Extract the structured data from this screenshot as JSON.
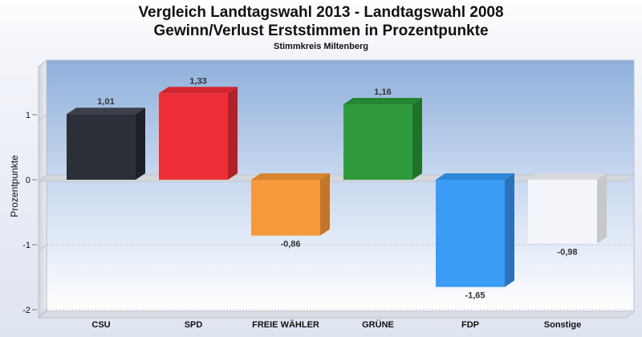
{
  "chart_data": {
    "type": "bar",
    "title": "Vergleich Landtagswahl 2013 - Landtagswahl 2008",
    "subtitle": "Gewinn/Verlust Erststimmen in Prozentpunkte",
    "caption": "Stimmkreis Miltenberg",
    "ylabel": "Prozentpunkte",
    "xlabel": "",
    "ylim": [
      -2.1,
      1.8
    ],
    "yticks": [
      1,
      0,
      -1,
      -2
    ],
    "ytick_labels": [
      "1",
      "0",
      "-1",
      "-2"
    ],
    "categories": [
      "CSU",
      "SPD",
      "FREIE WÄHLER",
      "GRÜNE",
      "FDP",
      "Sonstige"
    ],
    "values": [
      1.01,
      1.33,
      -0.86,
      1.16,
      -1.65,
      -0.98
    ],
    "value_labels": [
      "1,01",
      "1,33",
      "-0,86",
      "1,16",
      "-1,65",
      "-0,98"
    ],
    "colors": [
      "#2b2f38",
      "#ee2f37",
      "#f49a3c",
      "#2f9a3b",
      "#3a9cf4",
      "#f3f5fa"
    ],
    "side_colors": [
      "#1d2027",
      "#b0222a",
      "#c2762b",
      "#20722a",
      "#2b73b8",
      "#c6c8cc"
    ],
    "top_colors": [
      "#3b404b",
      "#d2262f",
      "#d7842f",
      "#268530",
      "#2f86d6",
      "#d8dade"
    ],
    "grid": true,
    "legend": "none"
  }
}
